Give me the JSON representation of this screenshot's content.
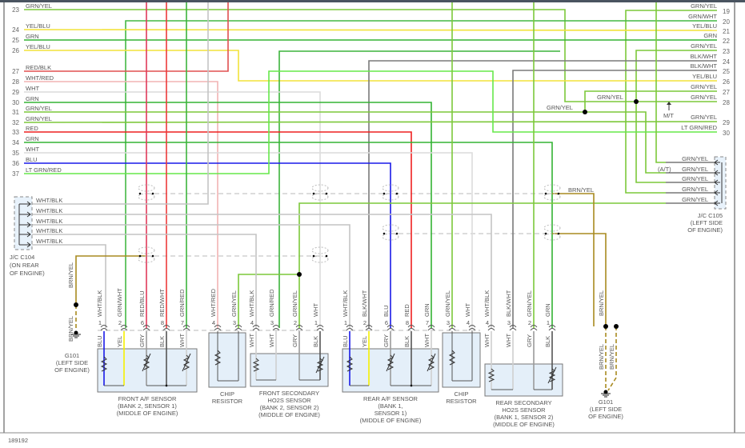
{
  "figure_id": "189192",
  "wire_colors": {
    "GRN": "#33b333",
    "GRN/YEL": "#7cc83a",
    "GRN/WHT": "#44b844",
    "GRN/RED": "#3cb43c",
    "YEL/BLU": "#f2e23a",
    "RED/BLK": "#e05050",
    "WHT/RED": "#f2b4b4",
    "WHT": "#dcdcdc",
    "WHT/BLK": "#c4c4c4",
    "BLK/WHT": "#7a7a7a",
    "RED": "#ee2020",
    "BLU": "#1a1ae8",
    "LT GRN/RED": "#66e84a",
    "RED/BLU": "#e03a5a",
    "RED/WHT": "#ec3a3a",
    "BRN/YEL": "#a88a20",
    "YEL": "#f5f000",
    "GRY": "#9a9a9a",
    "BLK": "#555555"
  },
  "left_rows": [
    {
      "num": "23",
      "label": "GRN/YEL"
    },
    {
      "num": "24",
      "label": "YEL/BLU"
    },
    {
      "num": "25",
      "label": "GRN"
    },
    {
      "num": "26",
      "label": "YEL/BLU"
    },
    {
      "num": "27",
      "label": "RED/BLK"
    },
    {
      "num": "28",
      "label": "WHT/RED"
    },
    {
      "num": "29",
      "label": "WHT"
    },
    {
      "num": "30",
      "label": "GRN"
    },
    {
      "num": "31",
      "label": "GRN/YEL"
    },
    {
      "num": "32",
      "label": "GRN/YEL"
    },
    {
      "num": "33",
      "label": "RED"
    },
    {
      "num": "34",
      "label": "GRN"
    },
    {
      "num": "35",
      "label": "WHT"
    },
    {
      "num": "36",
      "label": "BLU"
    },
    {
      "num": "37",
      "label": "LT GRN/RED"
    }
  ],
  "right_rows": [
    {
      "num": "19",
      "label": "GRN/YEL"
    },
    {
      "num": "20",
      "label": "GRN/WHT"
    },
    {
      "num": "21",
      "label": "YEL/BLU"
    },
    {
      "num": "22",
      "label": "GRN"
    },
    {
      "num": "23",
      "label": "GRN/YEL"
    },
    {
      "num": "24",
      "label": "BLK/WHT"
    },
    {
      "num": "25",
      "label": "BLK/WHT"
    },
    {
      "num": "26",
      "label": "YEL/BLU"
    },
    {
      "num": "27",
      "label": "GRN/YEL"
    },
    {
      "num": "28",
      "label": "GRN/YEL"
    },
    {
      "num": "29",
      "label": "GRN/YEL"
    },
    {
      "num": "30",
      "label": "LT GRN/RED"
    }
  ],
  "splice_labels": [
    "GRN/YEL",
    "GRN/YEL"
  ],
  "mt_label": "M/T",
  "c104": {
    "wires": [
      "WHT/BLK",
      "WHT/BLK",
      "WHT/BLK",
      "WHT/BLK",
      "WHT/BLK"
    ],
    "label": [
      "J/C C104",
      "(ON REAR",
      "OF ENGINE)"
    ]
  },
  "c105": {
    "wires": [
      "GRN/YEL",
      "GRN/YEL",
      "GRN/YEL",
      "GRN/YEL",
      "GRN/YEL"
    ],
    "at_note": "(A/T)",
    "label": [
      "J/C C105",
      "(LEFT SIDE",
      "OF ENGINE)"
    ]
  },
  "shield_wire_labels": [
    "BRN/YEL",
    "BRN/YEL",
    "BRN/YEL",
    "BRN/YEL",
    "BRN/YEL",
    "BRN/YEL"
  ],
  "grounds": [
    {
      "label": [
        "G101",
        "(LEFT SIDE",
        "OF ENGINE)"
      ]
    },
    {
      "label": [
        "G101",
        "(LEFT SIDE",
        "OF ENGINE)"
      ]
    }
  ],
  "components": [
    {
      "label": [
        "FRONT A/F SENSOR",
        "(BANK 2, SENSOR 1)",
        "(MIDDLE OF ENGINE)"
      ],
      "pins": [
        {
          "num": "1",
          "wire": "WHT/BLK",
          "inner": "BLU"
        },
        {
          "num": "2",
          "wire": "GRN/WHT",
          "inner": "YEL"
        },
        {
          "num": "6",
          "wire": "RED/BLU",
          "inner": "GRY"
        },
        {
          "num": "8",
          "wire": "RED/WHT",
          "inner": "BLK"
        },
        {
          "num": "7",
          "wire": "GRN/RED",
          "inner": "WHT"
        }
      ]
    },
    {
      "label": [
        "CHIP",
        "RESISTOR"
      ],
      "pins": [
        {
          "num": "4",
          "wire": "WHT/RED"
        },
        {
          "num": "3",
          "wire": "GRN/YEL"
        }
      ]
    },
    {
      "label": [
        "FRONT SECONDARY",
        "HO2S SENSOR",
        "(BANK 2, SENSOR 2)",
        "(MIDDLE OF ENGINE)"
      ],
      "pins": [
        {
          "num": "4",
          "wire": "WHT/BLK",
          "inner": "WHT"
        },
        {
          "num": "3",
          "wire": "GRN/RED",
          "inner": "WHT"
        },
        {
          "num": "2",
          "wire": "GRN/YEL",
          "inner": "GRY"
        },
        {
          "num": "1",
          "wire": "WHT",
          "inner": "BLK"
        }
      ]
    },
    {
      "label": [
        "REAR A/F SENSOR",
        "(BANK 1,",
        "SENSOR 1)",
        "(MIDDLE OF ENGINE)"
      ],
      "pins": [
        {
          "num": "1",
          "wire": "WHT/BLK",
          "inner": "BLU"
        },
        {
          "num": "2",
          "wire": "BLK/WHT",
          "inner": "YEL"
        },
        {
          "num": "6",
          "wire": "BLU",
          "inner": "GRY"
        },
        {
          "num": "8",
          "wire": "RED",
          "inner": "BLK"
        },
        {
          "num": "7",
          "wire": "GRN",
          "inner": "WHT"
        }
      ]
    },
    {
      "label": [
        "CHIP",
        "RESISTOR"
      ],
      "pins": [
        {
          "num": "3",
          "wire": "GRN/YEL"
        },
        {
          "num": "4",
          "wire": "WHT"
        }
      ]
    },
    {
      "label": [
        "REAR SECONDARY",
        "HO2S SENSOR",
        "(BANK 1, SENSOR 2)",
        "(MIDDLE OF ENGINE)"
      ],
      "pins": [
        {
          "num": "4",
          "wire": "WHT/BLK",
          "inner": "WHT"
        },
        {
          "num": "3",
          "wire": "BLK/WHT",
          "inner": "WHT"
        },
        {
          "num": "2",
          "wire": "GRN/YEL",
          "inner": "GRY"
        },
        {
          "num": "1",
          "wire": "GRN",
          "inner": "BLK"
        }
      ]
    }
  ]
}
